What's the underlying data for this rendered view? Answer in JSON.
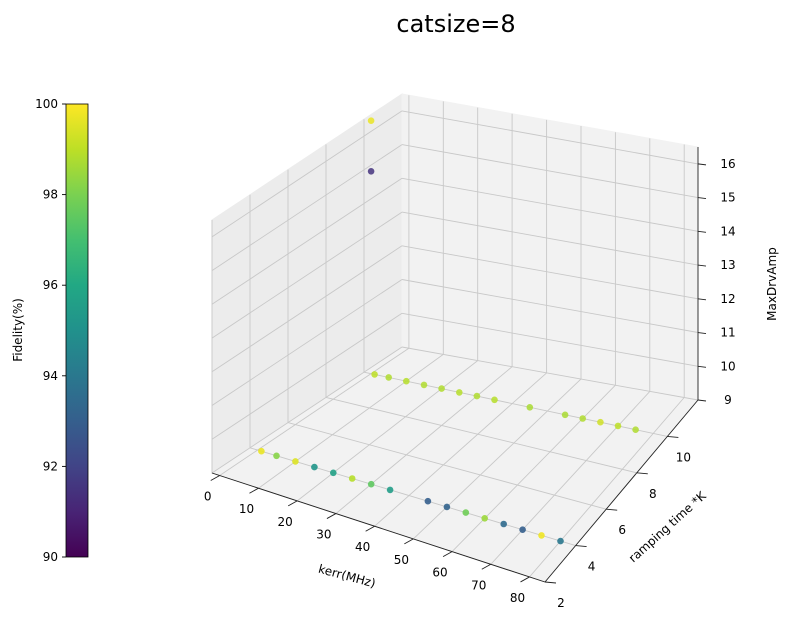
{
  "chart_data": {
    "type": "scatter",
    "projection": "3d",
    "title": "catsize=8",
    "xlabel": "kerr(MHz)",
    "ylabel": "ramping time *K",
    "zlabel": "MaxDrvAmp",
    "xlim": [
      -2,
      84
    ],
    "ylim": [
      2,
      12
    ],
    "zlim": [
      9,
      16.5
    ],
    "xticks": [
      "0",
      "10",
      "20",
      "30",
      "40",
      "50",
      "60",
      "70",
      "80"
    ],
    "yticks": [
      "2",
      "4",
      "6",
      "8",
      "10"
    ],
    "zticks": [
      "9",
      "10",
      "11",
      "12",
      "13",
      "14",
      "15",
      "16"
    ],
    "grid": true,
    "colormap": "viridis",
    "colorbar": {
      "label": "Fidelity(%)",
      "min": 90,
      "max": 100,
      "ticks": [
        "90",
        "92",
        "94",
        "96",
        "98",
        "100"
      ]
    },
    "points": [
      {
        "x": 1,
        "y": 10,
        "z": 9,
        "fidelity": 99.0
      },
      {
        "x": 5,
        "y": 10,
        "z": 9,
        "fidelity": 98.8
      },
      {
        "x": 10,
        "y": 10,
        "z": 9,
        "fidelity": 98.9
      },
      {
        "x": 15,
        "y": 10,
        "z": 9,
        "fidelity": 98.8
      },
      {
        "x": 20,
        "y": 10,
        "z": 9,
        "fidelity": 98.8
      },
      {
        "x": 25,
        "y": 10,
        "z": 9,
        "fidelity": 98.9
      },
      {
        "x": 30,
        "y": 10,
        "z": 9,
        "fidelity": 98.8
      },
      {
        "x": 35,
        "y": 10,
        "z": 9,
        "fidelity": 98.9
      },
      {
        "x": 45,
        "y": 10,
        "z": 9,
        "fidelity": 98.7
      },
      {
        "x": 55,
        "y": 10,
        "z": 9,
        "fidelity": 98.7
      },
      {
        "x": 60,
        "y": 10,
        "z": 9,
        "fidelity": 98.8
      },
      {
        "x": 65,
        "y": 10,
        "z": 9,
        "fidelity": 99.3
      },
      {
        "x": 70,
        "y": 10,
        "z": 9,
        "fidelity": 99.0
      },
      {
        "x": 75,
        "y": 10,
        "z": 9,
        "fidelity": 98.8
      },
      {
        "x": 1,
        "y": 4,
        "z": 9,
        "fidelity": 99.7
      },
      {
        "x": 5,
        "y": 4,
        "z": 9,
        "fidelity": 98.2
      },
      {
        "x": 10,
        "y": 4,
        "z": 9,
        "fidelity": 99.5
      },
      {
        "x": 15,
        "y": 4,
        "z": 9,
        "fidelity": 95.2
      },
      {
        "x": 20,
        "y": 4,
        "z": 9,
        "fidelity": 95.7
      },
      {
        "x": 25,
        "y": 4,
        "z": 9,
        "fidelity": 98.9
      },
      {
        "x": 30,
        "y": 4,
        "z": 9,
        "fidelity": 97.5
      },
      {
        "x": 35,
        "y": 4,
        "z": 9,
        "fidelity": 95.5
      },
      {
        "x": 45,
        "y": 4,
        "z": 9,
        "fidelity": 93.0
      },
      {
        "x": 50,
        "y": 4,
        "z": 9,
        "fidelity": 93.2
      },
      {
        "x": 55,
        "y": 4,
        "z": 9,
        "fidelity": 97.8
      },
      {
        "x": 60,
        "y": 4,
        "z": 9,
        "fidelity": 98.5
      },
      {
        "x": 65,
        "y": 4,
        "z": 9,
        "fidelity": 93.5
      },
      {
        "x": 70,
        "y": 4,
        "z": 9,
        "fidelity": 93.0
      },
      {
        "x": 75,
        "y": 4,
        "z": 9,
        "fidelity": 99.8
      },
      {
        "x": 80,
        "y": 4,
        "z": 9,
        "fidelity": 94.0
      },
      {
        "x": 0,
        "y": 10,
        "z": 16.5,
        "fidelity": 99.7
      },
      {
        "x": 0,
        "y": 10,
        "z": 15,
        "fidelity": 91.5
      }
    ]
  }
}
